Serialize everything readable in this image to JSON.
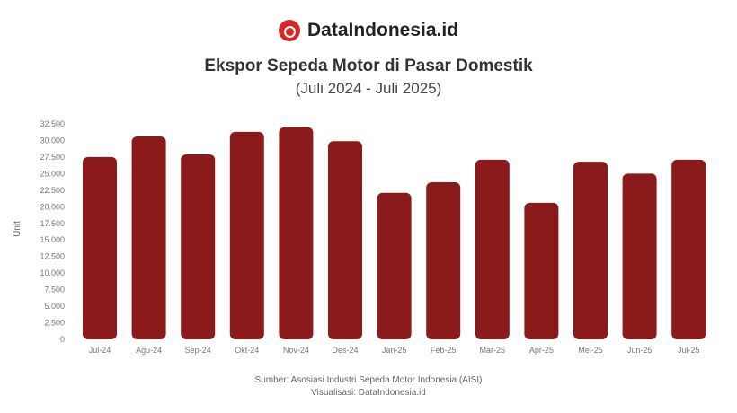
{
  "brand": {
    "name": "DataIndonesia.id",
    "icon": "dataindonesia-logo"
  },
  "chart_data": {
    "type": "bar",
    "title": "Ekspor Sepeda Motor di Pasar Domestik",
    "subtitle": "(Juli 2024 - Juli 2025)",
    "ylabel": "Unit",
    "xlabel": "",
    "categories": [
      "Jul-24",
      "Agu-24",
      "Sep-24",
      "Okt-24",
      "Nov-24",
      "Des-24",
      "Jan-25",
      "Feb-25",
      "Mar-25",
      "Apr-25",
      "Mei-25",
      "Jun-25",
      "Jul-25"
    ],
    "values": [
      27500,
      30600,
      27900,
      31300,
      32000,
      29900,
      22100,
      23700,
      27100,
      20600,
      26800,
      25000,
      27100
    ],
    "ylim": [
      0,
      32500
    ],
    "yticks": [
      "0",
      "2.500",
      "5.000",
      "7.500",
      "10.000",
      "12.500",
      "15.000",
      "17.500",
      "20.000",
      "22.500",
      "25.000",
      "27.500",
      "30.000",
      "32.500"
    ],
    "grid": false,
    "bar_color": "#8b1a1a"
  },
  "source": {
    "line1": "Sumber: Asosiasi Industri Sepeda Motor Indonesia (AISI)",
    "line2": "Visualisasi: DataIndonesia.id"
  }
}
